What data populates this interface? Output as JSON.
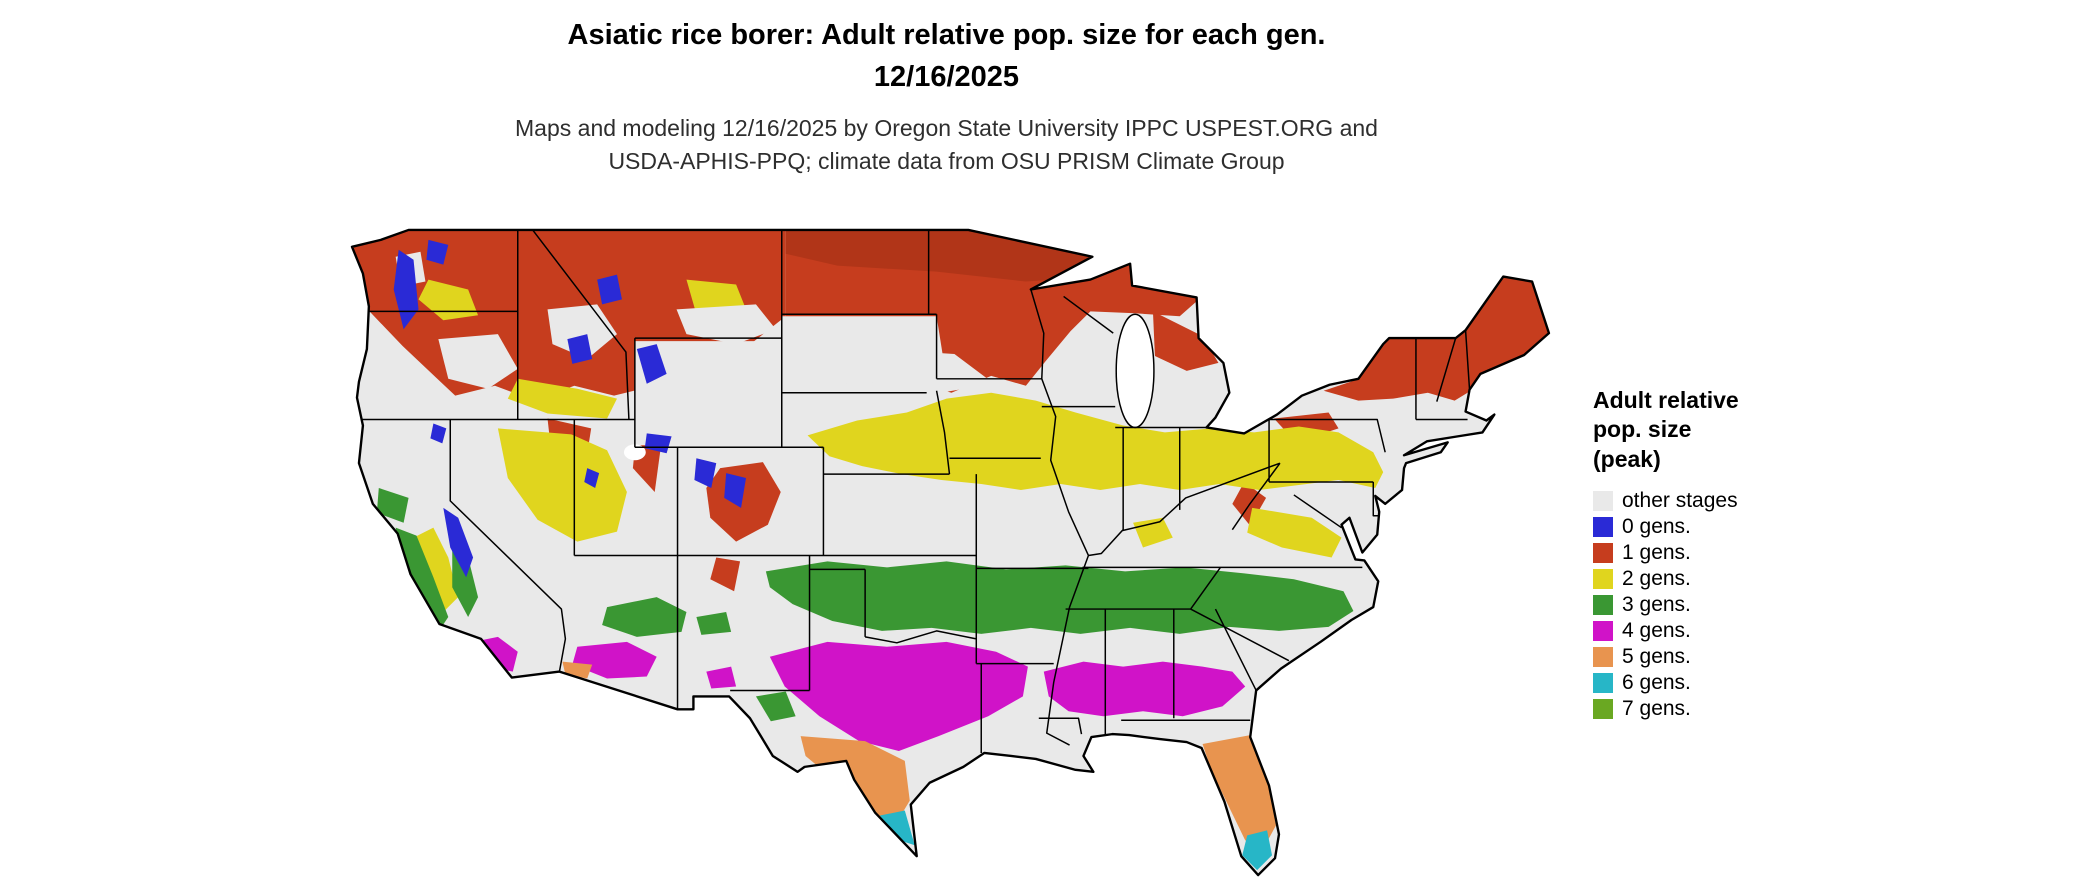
{
  "title": {
    "line1": "Asiatic rice borer: Adult relative pop. size for each gen.",
    "line2": "12/16/2025"
  },
  "subtitle": {
    "line1": "Maps and modeling 12/16/2025 by Oregon State University IPPC USPEST.ORG and",
    "line2": "USDA-APHIS-PPQ; climate data from OSU PRISM Climate Group"
  },
  "map": {
    "region": "Conterminous United States",
    "base_color": "#e9e9e9",
    "border_color": "#000000",
    "background_color": "#ffffff"
  },
  "legend": {
    "title_lines": [
      "Adult relative",
      "pop. size",
      "(peak)"
    ],
    "items": [
      {
        "label": "other stages",
        "color": "#e9e9e9"
      },
      {
        "label": "0 gens.",
        "color": "#2a2ad6"
      },
      {
        "label": "1 gens.",
        "color": "#c63d1e"
      },
      {
        "label": "2 gens.",
        "color": "#e0d51e"
      },
      {
        "label": "3 gens.",
        "color": "#3a9733"
      },
      {
        "label": "4 gens.",
        "color": "#d013c8"
      },
      {
        "label": "5 gens.",
        "color": "#e8944f"
      },
      {
        "label": "6 gens.",
        "color": "#27b6c7"
      },
      {
        "label": "7 gens.",
        "color": "#6aa822"
      }
    ]
  }
}
